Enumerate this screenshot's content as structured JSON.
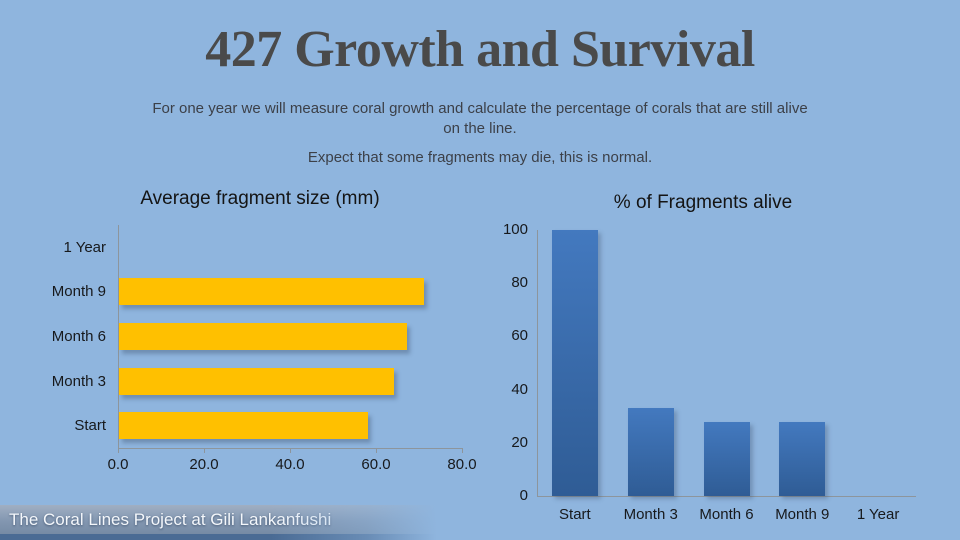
{
  "slide": {
    "title": "427 Growth and Survival",
    "subtitle_line1": "For one year we will measure coral growth and calculate the percentage of corals that are still alive on the line.",
    "subtitle_line2": "Expect that some fragments may die, this is normal.",
    "footer": "The Coral Lines Project at Gili Lankanfushi"
  },
  "colors": {
    "slide_background": "#8FB5DE",
    "title_text": "#4A4A4A",
    "body_text": "#3C4048",
    "chart_text": "#17191C",
    "axis_line": "#8D959C",
    "bar_yellow": "#FFC000",
    "bar_blue_top": "#4379BF",
    "bar_blue_bottom": "#2F5C95",
    "banner_strip": "#4A6B94",
    "banner_text": "#F4F7FB"
  },
  "chart_data": [
    {
      "type": "bar",
      "orientation": "horizontal",
      "title": "Average fragment size (mm)",
      "categories": [
        "1 Year",
        "Month 9",
        "Month 6",
        "Month 3",
        "Start"
      ],
      "values": [
        null,
        71,
        67,
        64,
        58
      ],
      "xlabel": "",
      "ylabel": "",
      "xlim": [
        0,
        80
      ],
      "xtick_labels": [
        "0.0",
        "20.0",
        "40.0",
        "60.0",
        "80.0"
      ],
      "grid": false,
      "legend": false,
      "bar_color": "#FFC000"
    },
    {
      "type": "bar",
      "orientation": "vertical",
      "title": "% of Fragments alive",
      "categories": [
        "Start",
        "Month 3",
        "Month 6",
        "Month 9",
        "1 Year"
      ],
      "values": [
        100,
        33,
        28,
        28,
        0
      ],
      "xlabel": "",
      "ylabel": "",
      "ylim": [
        0,
        100
      ],
      "yticks": [
        0,
        20,
        40,
        60,
        80,
        100
      ],
      "grid": false,
      "legend": false,
      "bar_gradient_top": "#4379BF",
      "bar_gradient_bottom": "#2F5C95"
    }
  ]
}
